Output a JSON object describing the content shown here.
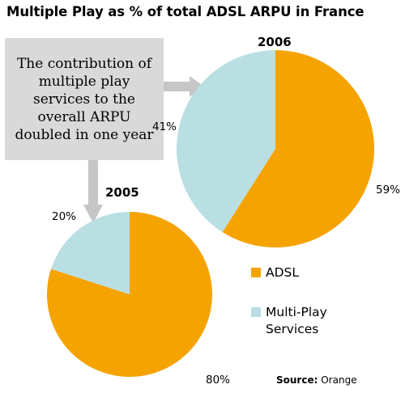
{
  "title": "Multiple Play as % of total ADSL ARPU in France",
  "note": "The contribution of multiple play services to the overall ARPU doubled in one year",
  "source": {
    "label": "Source:",
    "value": "Orange"
  },
  "colors": {
    "ADSL": "#f5a300",
    "Multi-Play Services": "#b9dfe3",
    "arrow": "#c6c6c6"
  },
  "chart_data": [
    {
      "type": "pie",
      "title": "2006",
      "categories": [
        "ADSL",
        "Multi-Play Services"
      ],
      "values": [
        59,
        41
      ],
      "labels": [
        "59%",
        "41%"
      ],
      "legend": "right"
    },
    {
      "type": "pie",
      "title": "2005",
      "categories": [
        "ADSL",
        "Multi-Play Services"
      ],
      "values": [
        80,
        20
      ],
      "labels": [
        "80%",
        "20%"
      ],
      "legend": "right"
    }
  ],
  "legend": [
    {
      "label": "ADSL"
    },
    {
      "label": "Multi-Play Services"
    }
  ]
}
